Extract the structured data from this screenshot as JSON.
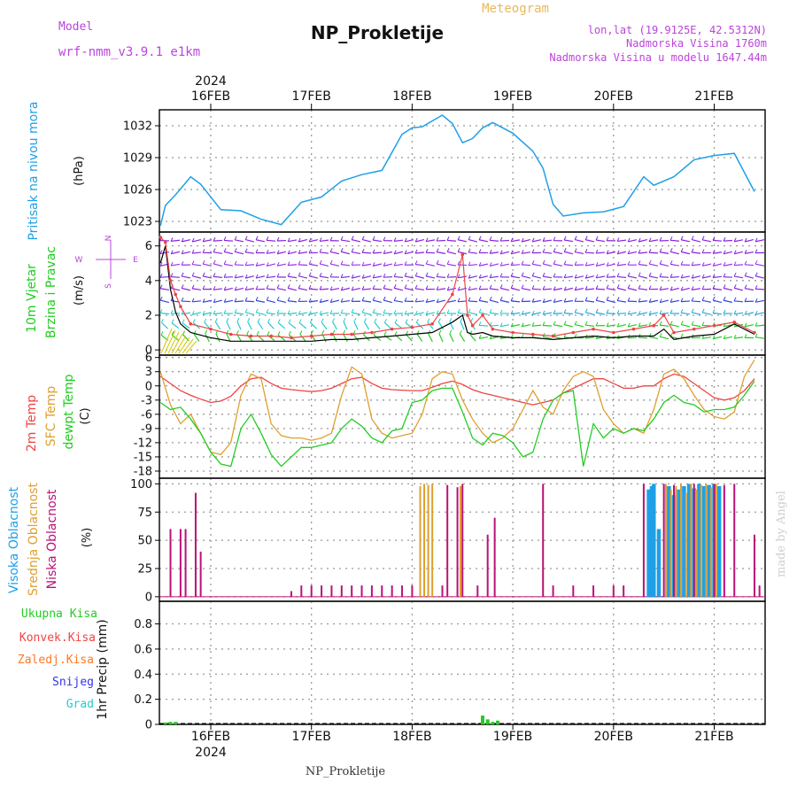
{
  "header": {
    "model_label": "Model",
    "model_name": "wrf-nmm_v3.9.1  e1km",
    "title": "NP_Prokletije",
    "product": "Meteogram",
    "lonlat": "lon,lat (19.9125E, 42.5312N)",
    "elevation": "Nadmorska Visina 1760m",
    "model_elevation": "Nadmorska Visina u modelu 1647.44m"
  },
  "footer": {
    "station": "NP_Prokletije",
    "credit": "made by Angel"
  },
  "time_axis": {
    "year": "2024",
    "day_labels": [
      "16FEB",
      "17FEB",
      "18FEB",
      "19FEB",
      "20FEB",
      "21FEB"
    ]
  },
  "colors": {
    "pressure": "#1ea0e6",
    "temp2m": "#ee4444",
    "sfc": "#dda030",
    "dew": "#22cc22",
    "high_cloud": "#1ea0e6",
    "mid_cloud": "#dda030",
    "low_cloud": "#bb1177",
    "total_precip": "#22cc22",
    "conv_precip": "#ee4444",
    "frz_precip": "#ff7722",
    "snow": "#3333ee",
    "hail": "#22cccc",
    "wind_line": "#000000",
    "gust": "#ee4444",
    "purple_text": "#bb44dd",
    "orange_text": "#e8b860"
  },
  "chart_data": [
    {
      "type": "line",
      "name": "pressure",
      "ylabels": [
        "Pritisak na nivou mora",
        "(hPa)"
      ],
      "yticks": [
        1023,
        1026,
        1029,
        1032
      ],
      "ylim": [
        1022,
        1033.5
      ],
      "x_days": [
        -0.5,
        -0.45,
        -0.35,
        -0.2,
        -0.1,
        0.1,
        0.3,
        0.5,
        0.7,
        0.9,
        1.1,
        1.3,
        1.5,
        1.7,
        1.9,
        2.0,
        2.1,
        2.3,
        2.4,
        2.5,
        2.6,
        2.7,
        2.8,
        3.0,
        3.2,
        3.3,
        3.4,
        3.5,
        3.7,
        3.9,
        4.1,
        4.3,
        4.4,
        4.6,
        4.8,
        5.0,
        5.2,
        5.4
      ],
      "values": [
        1022.6,
        1024.5,
        1025.5,
        1027.2,
        1026.5,
        1024.1,
        1024.0,
        1023.2,
        1022.7,
        1024.8,
        1025.3,
        1026.8,
        1027.4,
        1027.8,
        1031.2,
        1031.8,
        1031.9,
        1033.0,
        1032.2,
        1030.4,
        1030.8,
        1031.8,
        1032.3,
        1031.3,
        1029.6,
        1028.0,
        1024.6,
        1023.5,
        1023.8,
        1023.9,
        1024.4,
        1027.2,
        1026.4,
        1027.2,
        1028.8,
        1029.2,
        1029.4,
        1025.8
      ]
    },
    {
      "type": "line",
      "name": "wind",
      "ylabels": [
        "10m Vjetar",
        "Brzina i Pravac",
        "(m/s)"
      ],
      "compass": {
        "north": "N",
        "east": "E",
        "south": "S",
        "west": "W"
      },
      "yticks": [
        0,
        2,
        4,
        6
      ],
      "ylim": [
        -0.3,
        6.8
      ],
      "x_days": [
        -0.5,
        -0.45,
        -0.4,
        -0.35,
        -0.3,
        -0.2,
        0.0,
        0.2,
        0.4,
        0.6,
        0.8,
        1.0,
        1.2,
        1.4,
        1.6,
        1.8,
        2.0,
        2.2,
        2.4,
        2.5,
        2.55,
        2.6,
        2.7,
        2.8,
        3.0,
        3.2,
        3.4,
        3.6,
        3.8,
        4.0,
        4.2,
        4.4,
        4.5,
        4.6,
        4.8,
        5.0,
        5.2,
        5.4
      ],
      "speed": [
        5.0,
        6.0,
        3.5,
        2.2,
        1.5,
        1.0,
        0.7,
        0.5,
        0.5,
        0.5,
        0.5,
        0.5,
        0.6,
        0.6,
        0.7,
        0.8,
        0.9,
        1.0,
        1.6,
        2.0,
        1.0,
        0.9,
        1.0,
        0.8,
        0.7,
        0.7,
        0.6,
        0.7,
        0.8,
        0.7,
        0.8,
        0.8,
        1.2,
        0.6,
        0.8,
        0.9,
        1.5,
        0.9
      ],
      "gust": [
        6.5,
        6.2,
        4.0,
        3.2,
        2.5,
        1.5,
        1.2,
        0.9,
        0.8,
        0.8,
        0.7,
        0.8,
        0.9,
        0.9,
        1.0,
        1.2,
        1.3,
        1.5,
        3.2,
        5.5,
        2.0,
        1.4,
        2.0,
        1.2,
        1.0,
        0.9,
        0.8,
        1.0,
        1.2,
        1.0,
        1.2,
        1.4,
        2.0,
        1.0,
        1.2,
        1.4,
        1.6,
        1.0
      ]
    },
    {
      "type": "line",
      "name": "temperature",
      "ylabels": [
        "2m Temp",
        "SFC Temp",
        "dewpt Temp",
        "(C)"
      ],
      "yticks": [
        -18,
        -15,
        -12,
        -9,
        -6,
        -3,
        0,
        3,
        6
      ],
      "ylim": [
        -19.5,
        6.5
      ],
      "x_days": [
        -0.5,
        -0.4,
        -0.3,
        -0.2,
        -0.1,
        0.0,
        0.1,
        0.2,
        0.3,
        0.4,
        0.5,
        0.6,
        0.7,
        0.8,
        0.9,
        1.0,
        1.1,
        1.2,
        1.3,
        1.4,
        1.5,
        1.6,
        1.7,
        1.8,
        1.9,
        2.0,
        2.1,
        2.2,
        2.3,
        2.4,
        2.5,
        2.6,
        2.7,
        2.8,
        2.9,
        3.0,
        3.1,
        3.2,
        3.3,
        3.4,
        3.5,
        3.6,
        3.7,
        3.8,
        3.9,
        4.0,
        4.1,
        4.2,
        4.3,
        4.4,
        4.5,
        4.6,
        4.7,
        4.8,
        4.9,
        5.0,
        5.1,
        5.2,
        5.3,
        5.4
      ],
      "series": [
        {
          "name": "2m Temp",
          "values": [
            2.0,
            0.5,
            -1.0,
            -2.0,
            -2.8,
            -3.5,
            -3.2,
            -2.2,
            0.0,
            1.5,
            1.8,
            0.5,
            -0.5,
            -0.8,
            -1.0,
            -1.2,
            -1.0,
            -0.5,
            0.5,
            1.5,
            1.8,
            0.5,
            -0.5,
            -0.8,
            -0.9,
            -1.0,
            -1.0,
            -0.3,
            0.5,
            1.0,
            0.3,
            -0.8,
            -1.5,
            -2.0,
            -2.5,
            -3.0,
            -3.5,
            -4.0,
            -3.5,
            -3.0,
            -1.5,
            -0.5,
            0.5,
            1.5,
            1.5,
            0.5,
            -0.5,
            -0.5,
            0.0,
            0.0,
            1.5,
            2.5,
            2.0,
            0.5,
            -1.0,
            -2.5,
            -3.0,
            -2.5,
            -1.0,
            1.5
          ]
        },
        {
          "name": "SFC Temp",
          "values": [
            3.0,
            -4.0,
            -8.0,
            -6.0,
            -10.0,
            -14.0,
            -14.5,
            -12.0,
            -2.0,
            2.5,
            1.5,
            -8.0,
            -10.5,
            -11.0,
            -11.0,
            -11.5,
            -11.0,
            -10.0,
            -2.0,
            4.0,
            2.5,
            -7.0,
            -10.0,
            -11.0,
            -10.5,
            -10.0,
            -6.0,
            1.5,
            3.0,
            2.5,
            -3.0,
            -7.0,
            -10.0,
            -12.0,
            -11.0,
            -9.0,
            -5.0,
            -1.0,
            -4.5,
            -6.0,
            -1.0,
            2.0,
            3.0,
            2.0,
            -5.0,
            -8.0,
            -10.0,
            -9.0,
            -10.0,
            -5.0,
            2.5,
            3.5,
            1.5,
            -2.0,
            -5.0,
            -6.5,
            -7.0,
            -5.5,
            2.0,
            5.5
          ]
        },
        {
          "name": "dewpt Temp",
          "values": [
            -3.5,
            -5.0,
            -4.5,
            -7.0,
            -10.0,
            -14.0,
            -16.5,
            -17.0,
            -9.0,
            -6.0,
            -10.0,
            -14.5,
            -17.0,
            -15.0,
            -13.0,
            -13.0,
            -12.5,
            -12.0,
            -9.0,
            -7.0,
            -8.5,
            -11.0,
            -12.0,
            -9.5,
            -9.0,
            -3.5,
            -3.0,
            -1.0,
            -0.5,
            -0.5,
            -5.5,
            -11.0,
            -12.5,
            -10.0,
            -10.5,
            -12.0,
            -15.0,
            -14.0,
            -7.0,
            -3.0,
            -1.5,
            -1.0,
            -17.0,
            -8.0,
            -11.0,
            -9.0,
            -10.0,
            -9.0,
            -9.5,
            -7.0,
            -3.5,
            -2.0,
            -3.5,
            -4.0,
            -5.5,
            -5.0,
            -5.0,
            -4.5,
            -2.0,
            1.0
          ]
        }
      ]
    },
    {
      "type": "bar",
      "name": "clouds",
      "ylabels": [
        "Visoka Oblacnost",
        "Srednja Oblacnost",
        "Niska Oblacnost",
        "(%)"
      ],
      "yticks": [
        0,
        25,
        50,
        75,
        100
      ],
      "ylim": [
        -4,
        105
      ],
      "series": [
        {
          "name": "Visoka Oblacnost",
          "x_days": [
            4.35,
            4.38,
            4.4,
            4.45,
            4.55,
            4.6,
            4.65,
            4.7,
            4.75,
            4.8,
            4.85,
            4.9,
            4.95,
            5.0,
            5.05
          ],
          "values": [
            95,
            98,
            100,
            60,
            98,
            90,
            95,
            98,
            100,
            96,
            100,
            98,
            99,
            100,
            98
          ]
        },
        {
          "name": "Srednja Oblacnost",
          "x_days": [
            2.08,
            2.12,
            2.16,
            2.2,
            2.48,
            4.52,
            4.57,
            4.62,
            4.67,
            4.72,
            4.77,
            4.82,
            4.87,
            4.92,
            4.97,
            5.02
          ],
          "values": [
            98,
            100,
            99,
            100,
            98,
            100,
            95,
            98,
            100,
            92,
            100,
            95,
            99,
            100,
            97,
            100
          ]
        },
        {
          "name": "Niska Oblacnost",
          "x_days": [
            -0.4,
            -0.3,
            -0.25,
            -0.15,
            -0.1,
            0.8,
            0.9,
            1.0,
            1.1,
            1.2,
            1.3,
            1.4,
            1.5,
            1.6,
            1.7,
            1.8,
            1.9,
            2.0,
            2.3,
            2.35,
            2.45,
            2.5,
            2.65,
            2.75,
            2.82,
            3.3,
            3.4,
            3.6,
            3.8,
            4.0,
            4.1,
            4.3,
            4.5,
            4.6,
            4.8,
            5.0,
            5.1,
            5.2,
            5.4,
            5.45
          ],
          "values": [
            60,
            60,
            60,
            92,
            40,
            5,
            10,
            10,
            10,
            10,
            10,
            10,
            10,
            10,
            10,
            10,
            10,
            10,
            10,
            99,
            97,
            100,
            10,
            55,
            70,
            100,
            10,
            10,
            10,
            10,
            10,
            100,
            100,
            99,
            100,
            100,
            99,
            100,
            55,
            10
          ]
        }
      ]
    },
    {
      "type": "bar",
      "name": "precipitation",
      "ylabels": [
        "1hr Precip (mm)"
      ],
      "legend": [
        "Ukupna  Kisa",
        "Konvek.Kisa",
        "Zaledj.Kisa",
        "Snijeg",
        "Grad"
      ],
      "yticks": [
        0,
        0.2,
        0.4,
        0.6,
        0.8
      ],
      "ylim": [
        0,
        0.98
      ],
      "series": [
        {
          "name": "Ukupna  Kisa",
          "x_days": [
            -0.45,
            -0.4,
            -0.35,
            2.7,
            2.75,
            2.8,
            2.85
          ],
          "values": [
            0.015,
            0.02,
            0.02,
            0.07,
            0.04,
            0.02,
            0.03
          ]
        }
      ]
    }
  ]
}
